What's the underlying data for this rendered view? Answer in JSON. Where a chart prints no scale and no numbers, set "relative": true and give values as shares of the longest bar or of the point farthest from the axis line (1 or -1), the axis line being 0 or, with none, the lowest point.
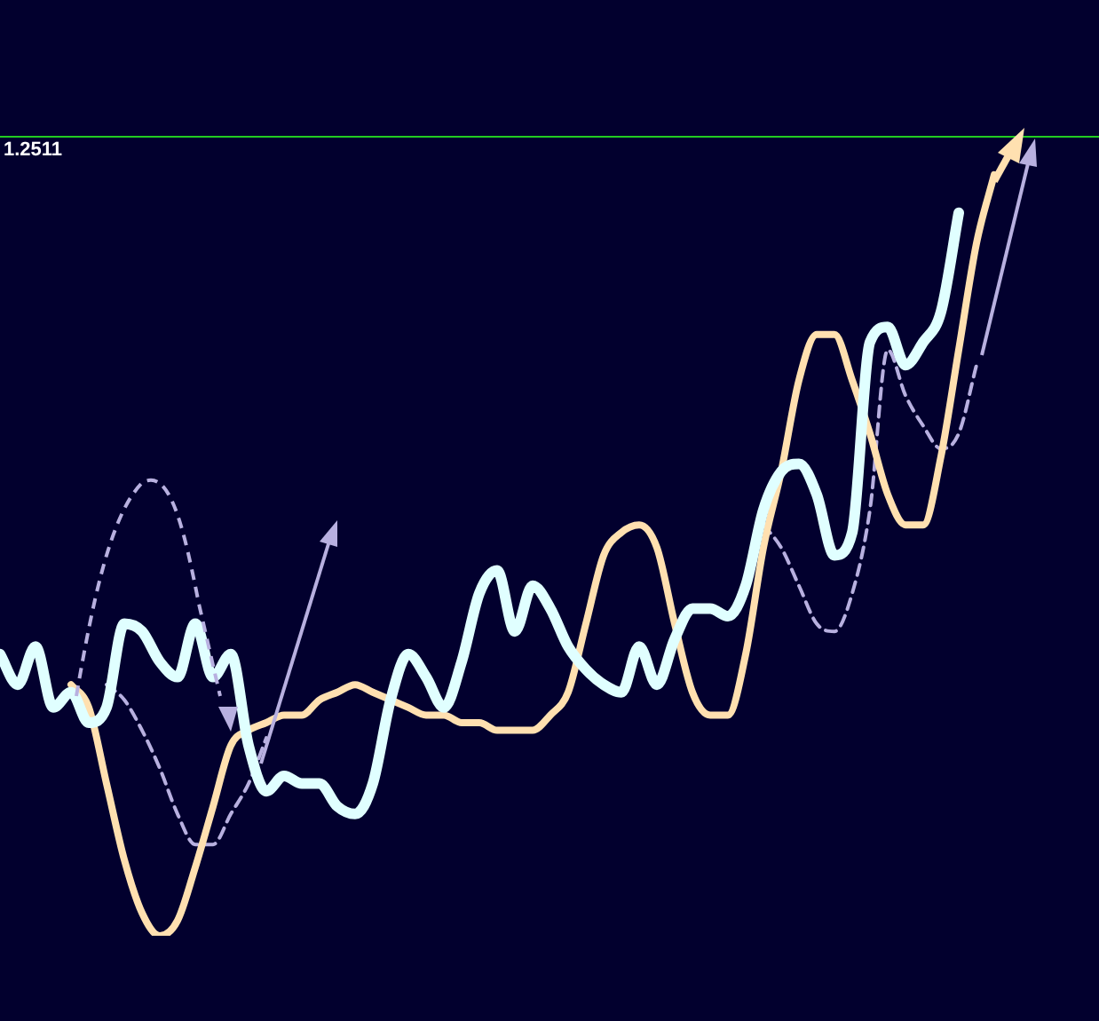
{
  "chart_data": {
    "type": "line",
    "relative": true,
    "legend": false,
    "marker": "none",
    "annotations": [
      "1.2511"
    ],
    "categories": [
      null,
      null,
      null,
      null,
      null,
      null,
      null,
      null,
      null,
      null,
      null,
      null,
      null,
      null,
      null,
      null,
      null,
      null,
      null,
      null,
      null,
      null,
      null,
      null,
      null,
      null,
      null,
      null,
      null,
      null,
      null,
      null,
      null,
      null,
      null,
      null,
      null,
      null,
      null,
      null,
      null,
      null,
      null,
      null,
      null,
      null,
      null,
      null,
      null,
      null,
      null,
      null,
      null,
      null,
      null,
      null,
      null,
      null
    ],
    "series": [
      {
        "color": "#b8b0e0",
        "line_style": "dashed",
        "values": [
          null,
          null,
          null,
          null,
          null,
          null,
          0.33,
          0.31,
          0.27,
          0.22,
          0.16,
          0.12,
          0.12,
          0.16,
          0.2,
          0.26,
          null,
          null,
          null,
          null,
          null,
          null,
          null,
          null,
          null,
          null,
          null,
          null,
          null,
          null,
          null,
          null,
          null,
          null,
          null,
          null,
          null,
          null,
          null,
          null,
          null,
          null,
          null,
          0.54,
          0.51,
          0.46,
          0.41,
          0.4,
          0.45,
          0.56,
          0.77,
          0.71,
          0.67,
          0.64,
          0.66,
          0.75,
          null,
          null
        ]
      },
      {
        "color": "#ffe0b0",
        "line_style": "solid",
        "values": [
          null,
          null,
          null,
          null,
          0.33,
          0.3,
          0.2,
          0.1,
          0.03,
          0.0,
          0.02,
          0.09,
          0.17,
          0.25,
          0.27,
          0.28,
          0.29,
          0.29,
          0.31,
          0.32,
          0.33,
          0.32,
          0.31,
          0.3,
          0.29,
          0.29,
          0.28,
          0.28,
          0.27,
          0.27,
          0.27,
          0.29,
          0.32,
          0.41,
          0.5,
          0.53,
          0.54,
          0.51,
          0.41,
          0.32,
          0.29,
          0.29,
          0.37,
          0.51,
          0.61,
          0.73,
          0.79,
          0.79,
          0.73,
          0.66,
          0.58,
          0.54,
          0.54,
          0.63,
          0.77,
          0.91,
          1.0,
          null
        ]
      },
      {
        "color": "#e0ffff",
        "line_style": "solid",
        "values": [
          0.37,
          0.33,
          0.38,
          0.3,
          0.32,
          0.28,
          0.3,
          0.41,
          0.4,
          0.36,
          0.34,
          0.41,
          0.34,
          0.37,
          0.25,
          0.19,
          0.21,
          0.2,
          0.2,
          0.17,
          0.16,
          0.2,
          0.31,
          0.37,
          0.34,
          0.3,
          0.36,
          0.45,
          0.48,
          0.4,
          0.46,
          0.43,
          0.38,
          0.35,
          0.33,
          0.32,
          0.38,
          0.33,
          0.39,
          0.43,
          0.43,
          0.42,
          0.46,
          0.56,
          0.61,
          0.62,
          0.58,
          0.5,
          0.53,
          0.78,
          0.8,
          0.75,
          0.78,
          0.82,
          0.95,
          null,
          null,
          null
        ]
      }
    ],
    "ref_lines": [
      {
        "axis": "y",
        "value": 1.05,
        "color": "#22cc22"
      }
    ]
  }
}
